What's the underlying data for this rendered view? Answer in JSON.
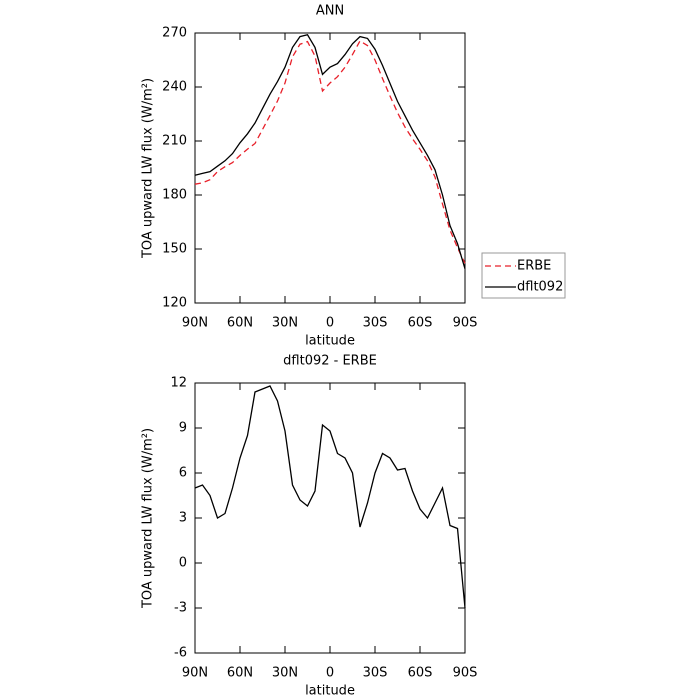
{
  "chart_data": [
    {
      "type": "line",
      "title": "ANN",
      "xlabel": "latitude",
      "ylabel": "TOA upward LW flux (W/m²)",
      "x": [
        90,
        85,
        80,
        75,
        70,
        65,
        60,
        55,
        50,
        45,
        40,
        35,
        30,
        25,
        20,
        15,
        10,
        5,
        0,
        -5,
        -10,
        -15,
        -20,
        -25,
        -30,
        -35,
        -40,
        -45,
        -50,
        -55,
        -60,
        -65,
        -70,
        -75,
        -80,
        -85,
        -90
      ],
      "series": [
        {
          "name": "ERBE",
          "color": "#e8202a",
          "style": "dashed",
          "values": [
            186,
            186.8,
            188.5,
            193,
            195.7,
            198,
            202,
            205.5,
            208.6,
            216.4,
            224.2,
            232.2,
            242.2,
            256.8,
            263.8,
            265.2,
            257.2,
            237.8,
            242.2,
            245.7,
            251,
            258,
            265.6,
            263,
            255,
            244.7,
            235,
            225.8,
            217.7,
            211.2,
            205.4,
            199,
            190,
            175,
            160.5,
            150.7,
            142
          ]
        },
        {
          "name": "dflt092",
          "color": "#000000",
          "style": "solid",
          "values": [
            191,
            192,
            193,
            196,
            199,
            203,
            209,
            214,
            220,
            228,
            236,
            243,
            251,
            262,
            268,
            269,
            262,
            247,
            251,
            253,
            258,
            264,
            268,
            267,
            261,
            252,
            242,
            232,
            224,
            216,
            209,
            202,
            194,
            180,
            163,
            153,
            139
          ]
        }
      ],
      "xlim": [
        90,
        -90
      ],
      "xticks": [
        {
          "value": 90,
          "label": "90N"
        },
        {
          "value": 60,
          "label": "60N"
        },
        {
          "value": 30,
          "label": "30N"
        },
        0,
        {
          "value": -30,
          "label": "30S"
        },
        {
          "value": -60,
          "label": "60S"
        },
        {
          "value": -90,
          "label": "90S"
        }
      ],
      "ylim": [
        120,
        270
      ],
      "yticks": [
        120,
        150,
        180,
        210,
        240,
        270
      ],
      "legend": "right"
    },
    {
      "type": "line",
      "title": "dflt092 - ERBE",
      "xlabel": "latitude",
      "ylabel": "TOA upward LW flux (W/m²)",
      "x": [
        90,
        85,
        80,
        75,
        70,
        65,
        60,
        55,
        50,
        45,
        40,
        35,
        30,
        25,
        20,
        15,
        10,
        5,
        0,
        -5,
        -10,
        -15,
        -20,
        -25,
        -30,
        -35,
        -40,
        -45,
        -50,
        -55,
        -60,
        -65,
        -70,
        -75,
        -80,
        -85,
        -90
      ],
      "color": "#000000",
      "values": [
        5.0,
        5.2,
        4.5,
        3.0,
        3.3,
        5.0,
        7.0,
        8.5,
        11.4,
        11.6,
        11.8,
        10.8,
        8.8,
        5.2,
        4.2,
        3.8,
        4.8,
        9.2,
        8.8,
        7.3,
        7.0,
        6.0,
        2.4,
        4.0,
        6.0,
        7.3,
        7.0,
        6.2,
        6.3,
        4.8,
        3.6,
        3.0,
        4.0,
        5.0,
        2.5,
        2.3,
        -3.0
      ],
      "xlim": [
        90,
        -90
      ],
      "xticks": [
        {
          "value": 90,
          "label": "90N"
        },
        {
          "value": 60,
          "label": "60N"
        },
        {
          "value": 30,
          "label": "30N"
        },
        0,
        {
          "value": -30,
          "label": "30S"
        },
        {
          "value": -60,
          "label": "60S"
        },
        {
          "value": -90,
          "label": "90S"
        }
      ],
      "ylim": [
        -6,
        12
      ],
      "yticks": [
        -6,
        -3,
        0,
        3,
        6,
        9,
        12
      ]
    }
  ]
}
